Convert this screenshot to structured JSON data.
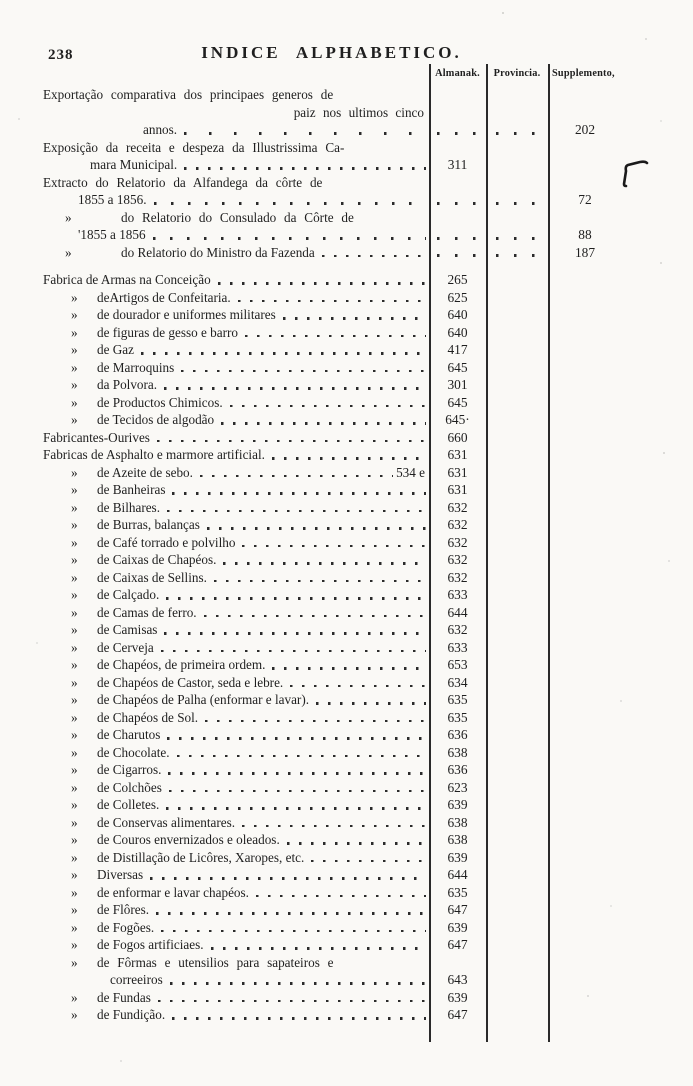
{
  "page": {
    "number": "238",
    "title": "INDICE ALPHABETICO."
  },
  "table": {
    "column_headers": {
      "almanak": "Almanak.",
      "provincia": "Provincia.",
      "supplemento": "Supplemento,"
    },
    "rows": [
      {
        "level": "main",
        "fill": true,
        "text": "Exportação comparativa dos principaes generos de"
      },
      {
        "level": "contr",
        "text": "paiz nos ultimos cinco"
      },
      {
        "level": "contrd",
        "text": "annos.",
        "dots": true,
        "alm": "dots",
        "prov": "dots",
        "supp": "202"
      },
      {
        "level": "main",
        "fill": true,
        "text": "Exposição da receita e despeza da Illustrissima Ca-"
      },
      {
        "level": "cont1",
        "text": "mara Municipal.",
        "dots": true,
        "alm": "311"
      },
      {
        "level": "main",
        "fill": true,
        "text": "Extracto do Relatorio da Alfandega da côrte de"
      },
      {
        "level": "cont2",
        "text": "1855 a 1856.",
        "dots": true,
        "alm": "dots",
        "prov": "dots",
        "supp": "72"
      },
      {
        "level": "sub2",
        "marker": "»",
        "fill": true,
        "text": "do Relatorio do Consulado da Côrte de"
      },
      {
        "level": "cont2",
        "text": "'1855 a 1856",
        "dots": true,
        "alm": "dots",
        "prov": "dots",
        "supp": "88"
      },
      {
        "level": "sub2",
        "marker": "»",
        "text": "do Relatorio do Ministro da Fazenda",
        "dots": true,
        "alm": "dots",
        "prov": "dots",
        "supp": "187"
      },
      {
        "level": "main",
        "gap": true,
        "text": "Fabrica de Armas na Conceição",
        "dots": true,
        "alm": "265"
      },
      {
        "level": "sub",
        "marker": "»",
        "text": "deArtigos de Confeitaria.",
        "dots": true,
        "alm": "625"
      },
      {
        "level": "sub",
        "marker": "»",
        "text": "de dourador e uniformes militares",
        "dots": true,
        "alm": "640"
      },
      {
        "level": "sub",
        "marker": "»",
        "text": "de figuras de gesso e barro",
        "dots": true,
        "alm": "640"
      },
      {
        "level": "sub",
        "marker": "»",
        "text": "de Gaz",
        "dots": true,
        "alm": "417"
      },
      {
        "level": "sub",
        "marker": "»",
        "text": "de Marroquins",
        "dots": true,
        "alm": "645"
      },
      {
        "level": "sub",
        "marker": "»",
        "text": "da Polvora.",
        "dots": true,
        "alm": "301"
      },
      {
        "level": "sub",
        "marker": "»",
        "text": "de Productos Chimicos.",
        "dots": true,
        "alm": "645"
      },
      {
        "level": "sub",
        "marker": "»",
        "text": "de Tecidos de algodão",
        "dots": true,
        "alm": "645·"
      },
      {
        "level": "main",
        "text": "Fabricantes-Ourives",
        "dots": true,
        "alm": "660"
      },
      {
        "level": "main",
        "text": "Fabricas de Asphalto e marmore artificial.",
        "dots": true,
        "alm": "631"
      },
      {
        "level": "sub",
        "marker": "»",
        "text": "de Azeite de sebo.",
        "dots": true,
        "right_text": "534 e",
        "alm": "631"
      },
      {
        "level": "sub",
        "marker": "»",
        "text": "de Banheiras",
        "dots": true,
        "alm": "631"
      },
      {
        "level": "sub",
        "marker": "»",
        "text": "de Bilhares.",
        "dots": true,
        "alm": "632"
      },
      {
        "level": "sub",
        "marker": "»",
        "text": "de Burras, balanças",
        "dots": true,
        "alm": "632"
      },
      {
        "level": "sub",
        "marker": "»",
        "text": "de Café torrado e polvilho",
        "dots": true,
        "alm": "632"
      },
      {
        "level": "sub",
        "marker": "»",
        "text": "de Caixas de Chapéos.",
        "dots": true,
        "alm": "632"
      },
      {
        "level": "sub",
        "marker": "»",
        "text": "de Caixas de Sellins.",
        "dots": true,
        "alm": "632"
      },
      {
        "level": "sub",
        "marker": "»",
        "text": "de Calçado.",
        "dots": true,
        "alm": "633"
      },
      {
        "level": "sub",
        "marker": "»",
        "text": "de Camas de ferro.",
        "dots": true,
        "alm": "644"
      },
      {
        "level": "sub",
        "marker": "»",
        "text": "de Camisas",
        "dots": true,
        "alm": "632"
      },
      {
        "level": "sub",
        "marker": "»",
        "text": "de Cerveja",
        "dots": true,
        "alm": "633"
      },
      {
        "level": "sub",
        "marker": "»",
        "text": "de Chapéos, de primeira ordem.",
        "dots": true,
        "alm": "653"
      },
      {
        "level": "sub",
        "marker": "»",
        "text": "de Chapéos de Castor, seda e lebre.",
        "dots": true,
        "alm": "634"
      },
      {
        "level": "sub",
        "marker": "»",
        "text": "de Chapéos de Palha (enformar e lavar).",
        "dots": true,
        "alm": "635"
      },
      {
        "level": "sub",
        "marker": "»",
        "text": "de Chapéos de Sol.",
        "dots": true,
        "alm": "635"
      },
      {
        "level": "sub",
        "marker": "»",
        "text": "de Charutos",
        "dots": true,
        "alm": "636"
      },
      {
        "level": "sub",
        "marker": "»",
        "text": "de Chocolate.",
        "dots": true,
        "alm": "638"
      },
      {
        "level": "sub",
        "marker": "»",
        "text": "de Cigarros.",
        "dots": true,
        "alm": "636"
      },
      {
        "level": "sub",
        "marker": "»",
        "text": "de Colchões",
        "dots": true,
        "alm": "623"
      },
      {
        "level": "sub",
        "marker": "»",
        "text": "de Colletes.",
        "dots": true,
        "alm": "639"
      },
      {
        "level": "sub",
        "marker": "»",
        "text": "de Conservas alimentares.",
        "dots": true,
        "alm": "638"
      },
      {
        "level": "sub",
        "marker": "»",
        "text": "de Couros envernizados e oleados.",
        "dots": true,
        "alm": "638"
      },
      {
        "level": "sub",
        "marker": "»",
        "text": "de Distillação de Licôres, Xaropes, etc.",
        "dots": true,
        "alm": "639"
      },
      {
        "level": "sub",
        "marker": "»",
        "text": "Diversas",
        "dots": true,
        "alm": "644"
      },
      {
        "level": "sub",
        "marker": "»",
        "text": "de enformar e lavar chapéos.",
        "dots": true,
        "alm": "635"
      },
      {
        "level": "sub",
        "marker": "»",
        "text": "de Flôres.",
        "dots": true,
        "alm": "647"
      },
      {
        "level": "sub",
        "marker": "»",
        "text": "de Fogões.",
        "dots": true,
        "alm": "639"
      },
      {
        "level": "sub",
        "marker": "»",
        "text": "de Fogos artificiaes.",
        "dots": true,
        "alm": "647"
      },
      {
        "level": "sub",
        "marker": "»",
        "fill": true,
        "text": "de Fôrmas e utensilios para sapateiros e"
      },
      {
        "level": "cont3",
        "text": "correeiros",
        "dots": true,
        "alm": "643"
      },
      {
        "level": "sub",
        "marker": "»",
        "text": "de Fundas",
        "dots": true,
        "alm": "639"
      },
      {
        "level": "sub",
        "marker": "»",
        "text": "de Fundição.",
        "dots": true,
        "alm": "647"
      }
    ]
  },
  "annotations": {
    "pen_mark": "handwritten-hook-mark"
  },
  "colors": {
    "ink": "#1f1f1f",
    "paper": "#faf9f6",
    "rule": "#2a2a2a"
  }
}
